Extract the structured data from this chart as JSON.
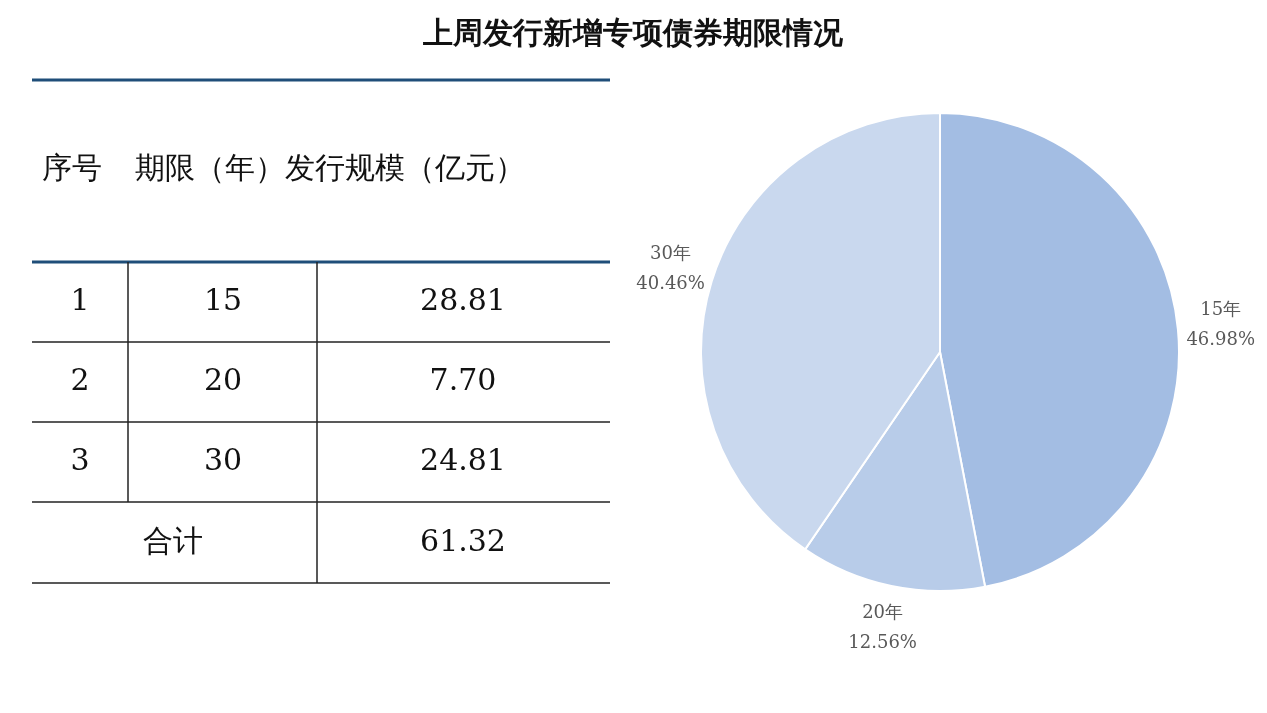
{
  "chart_data": [
    {
      "type": "other",
      "title": "上周发行新增专项债券期限情况",
      "annotations": [
        "序号",
        "期限（年）",
        "发行规模（亿元）",
        "1",
        "15",
        "28.81",
        "2",
        "20",
        "7.70",
        "3",
        "30",
        "24.81",
        "合计",
        "61.32"
      ]
    },
    {
      "type": "pie",
      "categories": [
        "15年",
        "20年",
        "30年"
      ],
      "values": [
        46.98,
        12.56,
        40.46
      ],
      "colors": [
        "#a3bde3",
        "#b8cce9",
        "#c9d8ee"
      ],
      "value_labels": [
        "46.98%",
        "12.56%",
        "40.46%"
      ]
    }
  ]
}
